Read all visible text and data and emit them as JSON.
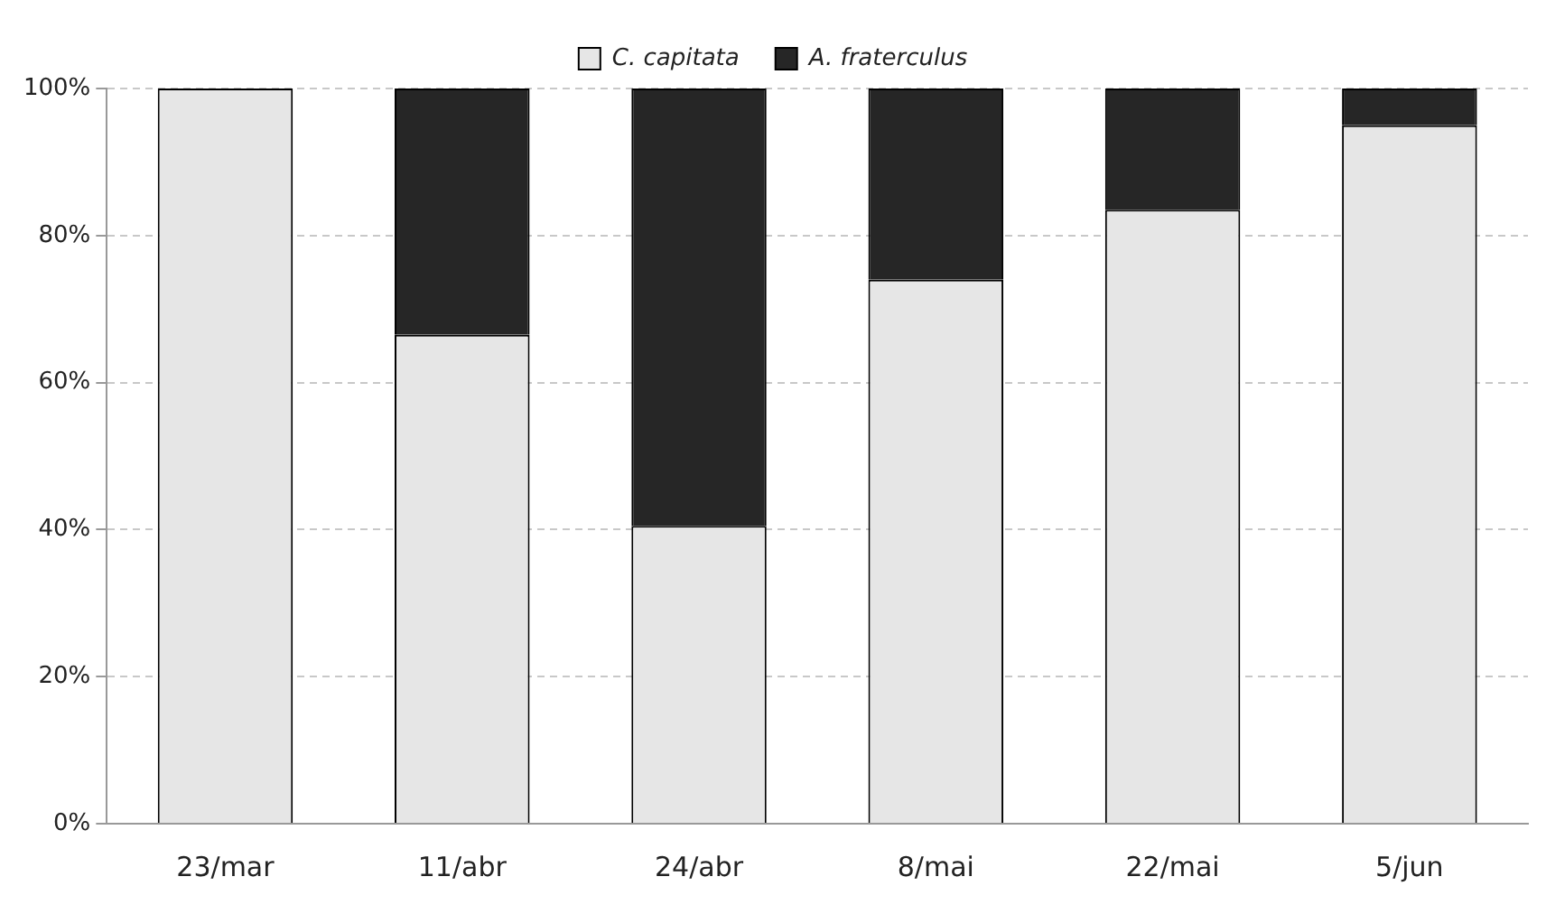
{
  "chart_data": {
    "type": "bar",
    "stacked": true,
    "categories": [
      "23/mar",
      "11/abr",
      "24/abr",
      "8/mai",
      "22/mai",
      "5/jun"
    ],
    "series": [
      {
        "name": "C. capitata",
        "color": "#e6e6e6",
        "values": [
          100,
          66.5,
          40.5,
          74,
          83.5,
          95
        ]
      },
      {
        "name": "A. fraterculus",
        "color": "#262626",
        "values": [
          0,
          33.5,
          59.5,
          26,
          16.5,
          5
        ]
      }
    ],
    "ylim": [
      0,
      100
    ],
    "yticks": [
      {
        "value": 0,
        "label": "0%"
      },
      {
        "value": 20,
        "label": "20%"
      },
      {
        "value": 40,
        "label": "40%"
      },
      {
        "value": 60,
        "label": "60%"
      },
      {
        "value": 80,
        "label": "80%"
      },
      {
        "value": 100,
        "label": "100%"
      }
    ],
    "grid": "y",
    "legend": "top"
  }
}
